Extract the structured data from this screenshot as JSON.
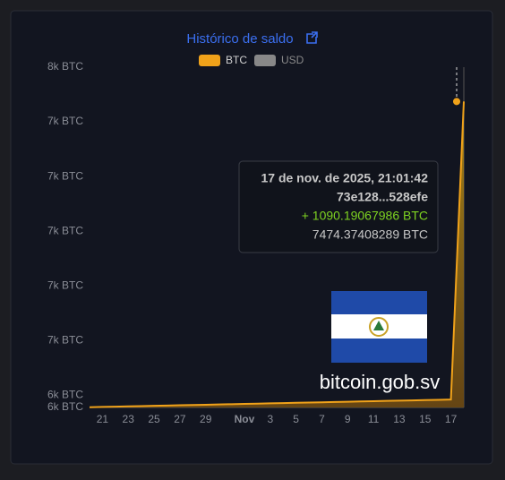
{
  "chart_data": {
    "type": "area",
    "title": "Histórico de saldo",
    "categories": [
      null,
      "21",
      null,
      "23",
      null,
      "25",
      null,
      "27",
      null,
      "29",
      null,
      null,
      "Nov",
      null,
      "3",
      null,
      "5",
      null,
      "7",
      null,
      "9",
      null,
      "11",
      null,
      "13",
      null,
      "15",
      null,
      "17",
      null
    ],
    "series": [
      {
        "name": "BTC",
        "color": "#f0a21a",
        "values": [
          6356,
          6357,
          6358,
          6359,
          6360,
          6361,
          6362,
          6363,
          6364,
          6365,
          6366,
          6367,
          6368,
          6369,
          6370,
          6371,
          6372,
          6373,
          6374,
          6375,
          6376,
          6377,
          6378,
          6379,
          6380,
          6381,
          6382,
          6383,
          6384,
          7474.37408289
        ]
      }
    ],
    "inactive_series": [
      {
        "name": "USD",
        "color": "#888888"
      }
    ],
    "ylim": [
      6355,
      7600
    ],
    "yticks": [
      {
        "value": 7600,
        "label": "8k BTC"
      },
      {
        "value": 7400,
        "label": "7k BTC"
      },
      {
        "value": 7200,
        "label": "7k BTC"
      },
      {
        "value": 7000,
        "label": "7k BTC"
      },
      {
        "value": 6800,
        "label": "7k BTC"
      },
      {
        "value": 6600,
        "label": "7k BTC"
      },
      {
        "value": 6400,
        "label": "6k BTC"
      },
      {
        "value": 6355,
        "label": "6k BTC"
      }
    ],
    "grid": false,
    "tooltip": {
      "time": "17 de nov. de 2025, 21:01:42",
      "tx": "73e128...528efe",
      "change": "+ 1090.19067986 BTC",
      "balance": "7474.37408289 BTC"
    },
    "watermark": "bitcoin.gob.sv"
  }
}
